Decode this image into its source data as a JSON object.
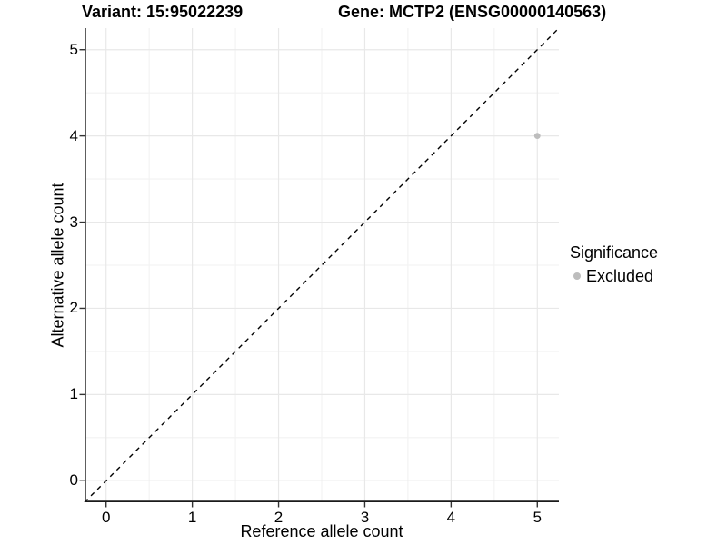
{
  "titles": {
    "variant": "Variant: 15:95022239",
    "gene": "Gene: MCTP2 (ENSG00000140563)"
  },
  "axes": {
    "x_label": "Reference allele count",
    "y_label": "Alternative allele count"
  },
  "legend": {
    "title": "Significance",
    "items": [
      {
        "label": "Excluded",
        "color": "#bdbdbd"
      }
    ]
  },
  "chart_data": {
    "type": "scatter",
    "title_left": "Variant: 15:95022239",
    "title_right": "Gene: MCTP2 (ENSG00000140563)",
    "xlabel": "Reference allele count",
    "ylabel": "Alternative allele count",
    "xlim": [
      -0.25,
      5.25
    ],
    "ylim": [
      -0.25,
      5.25
    ],
    "x_ticks": [
      0,
      1,
      2,
      3,
      4,
      5
    ],
    "y_ticks": [
      0,
      1,
      2,
      3,
      4,
      5
    ],
    "grid": true,
    "legend_position": "right",
    "series": [
      {
        "name": "Excluded",
        "color": "#bdbdbd",
        "points": [
          {
            "x": 5,
            "y": 4
          }
        ]
      }
    ],
    "reference_line": {
      "type": "identity",
      "style": "dashed",
      "color": "#000000",
      "from": [
        -0.25,
        -0.25
      ],
      "to": [
        5.25,
        5.25
      ]
    }
  },
  "colors": {
    "background": "#ffffff",
    "grid_major": "#e8e8e8",
    "grid_minor": "#f2f2f2",
    "axis_line": "#1a1a1a",
    "tick_mark": "#333333",
    "text": "#000000"
  }
}
